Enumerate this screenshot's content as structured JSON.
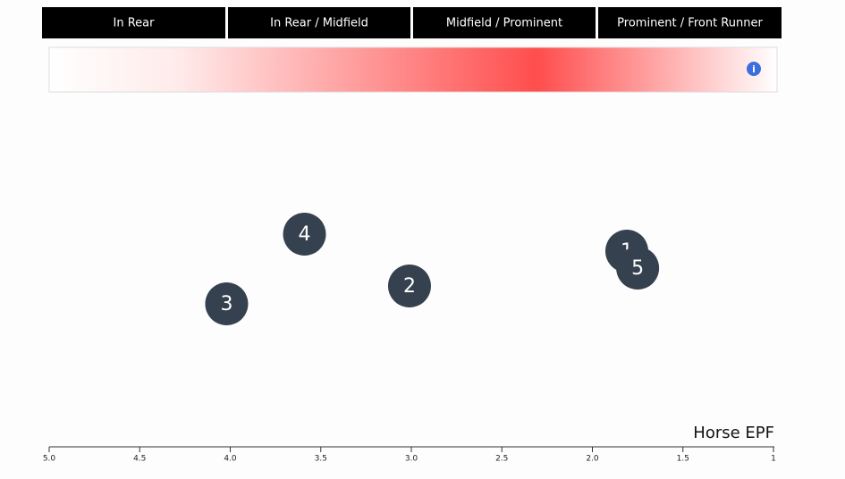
{
  "header": {
    "sections": [
      "In Rear",
      "In Rear / Midfield",
      "Midfield / Prominent",
      "Prominent / Front Runner"
    ]
  },
  "chart_data": {
    "type": "scatter",
    "xlabel": "Horse EPF",
    "xlim": [
      5,
      1
    ],
    "xticks": [
      {
        "value": 5,
        "label": "5.0"
      },
      4.5,
      {
        "value": 4,
        "label": "4.0"
      },
      3.5,
      {
        "value": 3,
        "label": "3.0"
      },
      2.5,
      {
        "value": 2,
        "label": "2.0"
      },
      1.5,
      1
    ],
    "color": "#36414f",
    "points": [
      {
        "label": "4",
        "x": 3.59
      },
      {
        "label": "3",
        "x": 4.02
      },
      {
        "label": "2",
        "x": 3.01
      },
      {
        "label": "1",
        "x": 1.81
      },
      {
        "label": "5",
        "x": 1.75
      }
    ]
  }
}
